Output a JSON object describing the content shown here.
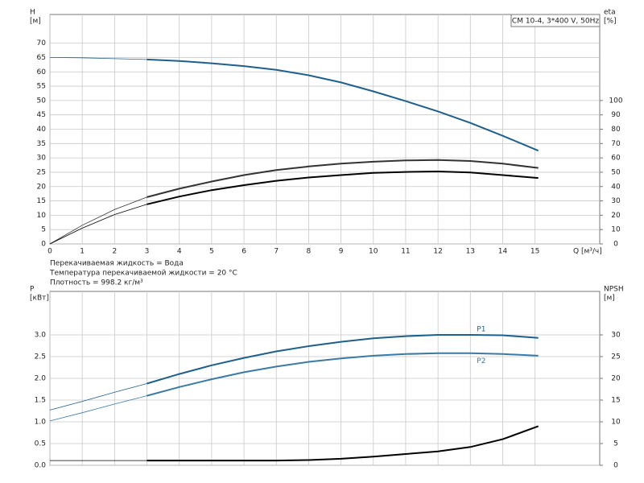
{
  "chart_data": [
    {
      "type": "line",
      "title": "CM 10-4, 3*400 V, 50Hz",
      "ylabel": [
        "H",
        "[м]"
      ],
      "y2label": [
        "eta",
        "[%]"
      ],
      "xlabel": "Q [м³/ч]",
      "annotations": [
        "Перекачиваемая жидкость = Вода",
        "Температура перекачиваемой жидкости = 20 °C",
        "Плотность = 998.2 кг/м³"
      ],
      "xlim": [
        0,
        17
      ],
      "xticks": [
        0,
        1,
        2,
        3,
        4,
        5,
        6,
        7,
        8,
        9,
        10,
        11,
        12,
        13,
        14,
        15
      ],
      "show_xtick_labels": true,
      "ylim": [
        0,
        80
      ],
      "yticks": [
        0,
        5,
        10,
        15,
        20,
        25,
        30,
        35,
        40,
        45,
        50,
        55,
        60,
        65,
        70
      ],
      "y2lim": [
        0,
        160
      ],
      "y2ticks": [
        0,
        10,
        20,
        30,
        40,
        50,
        60,
        70,
        80,
        90,
        100
      ],
      "grid": true,
      "x": [
        0,
        1,
        2,
        3,
        4,
        5,
        6,
        7,
        8,
        9,
        10,
        11,
        12,
        13,
        14,
        15.1
      ],
      "series": [
        {
          "color": "#1f5f8b",
          "values": [
            65,
            64.9,
            64.6,
            64.3,
            63.8,
            63,
            62,
            60.7,
            58.8,
            56.3,
            53.2,
            49.8,
            46.2,
            42.2,
            37.7,
            32.5
          ]
        },
        {
          "color": "#333333",
          "axis": "y2",
          "values": [
            0,
            13,
            24,
            32.6,
            38.5,
            43.5,
            48,
            51.5,
            54,
            56,
            57.3,
            58.2,
            58.5,
            57.8,
            56,
            53
          ]
        },
        {
          "color": "#000000",
          "axis": "y2",
          "values": [
            0,
            11,
            20.5,
            27.6,
            33,
            37.5,
            41,
            44,
            46.3,
            48,
            49.5,
            50.2,
            50.5,
            49.8,
            48,
            46
          ]
        }
      ]
    },
    {
      "type": "line",
      "ylabel": [
        "P",
        "[кВт]"
      ],
      "y2label": [
        "NPSH",
        "[м]"
      ],
      "xlim": [
        0,
        17
      ],
      "xticks": [
        0,
        1,
        2,
        3,
        4,
        5,
        6,
        7,
        8,
        9,
        10,
        11,
        12,
        13,
        14,
        15
      ],
      "show_xtick_labels": false,
      "ylim": [
        0,
        4
      ],
      "yticks": [
        {
          "value": 0,
          "label": "0.0"
        },
        0.5,
        {
          "value": 1,
          "label": "1.0"
        },
        1.5,
        {
          "value": 2,
          "label": "2.0"
        },
        2.5,
        {
          "value": 3,
          "label": "3.0"
        }
      ],
      "y2lim": [
        0,
        40
      ],
      "y2ticks": [
        0,
        5,
        10,
        15,
        20,
        25,
        30
      ],
      "grid": true,
      "x": [
        0,
        1,
        2,
        3,
        4,
        5,
        6,
        7,
        8,
        9,
        10,
        11,
        12,
        13,
        14,
        15.1
      ],
      "series": [
        {
          "name": "P1",
          "color": "#1f5f8b",
          "values": [
            1.27,
            1.47,
            1.68,
            1.88,
            2.1,
            2.3,
            2.47,
            2.62,
            2.74,
            2.84,
            2.92,
            2.97,
            3.0,
            3.0,
            2.99,
            2.93
          ]
        },
        {
          "name": "P2",
          "color": "#3a7aa6",
          "values": [
            1.02,
            1.21,
            1.41,
            1.6,
            1.8,
            1.98,
            2.14,
            2.27,
            2.38,
            2.46,
            2.52,
            2.56,
            2.58,
            2.58,
            2.56,
            2.52
          ]
        },
        {
          "color": "#000000",
          "axis": "y2",
          "values": [
            1.1,
            1.1,
            1.1,
            1.1,
            1.1,
            1.1,
            1.1,
            1.1,
            1.2,
            1.5,
            2,
            2.6,
            3.2,
            4.2,
            6,
            9
          ]
        }
      ]
    }
  ]
}
